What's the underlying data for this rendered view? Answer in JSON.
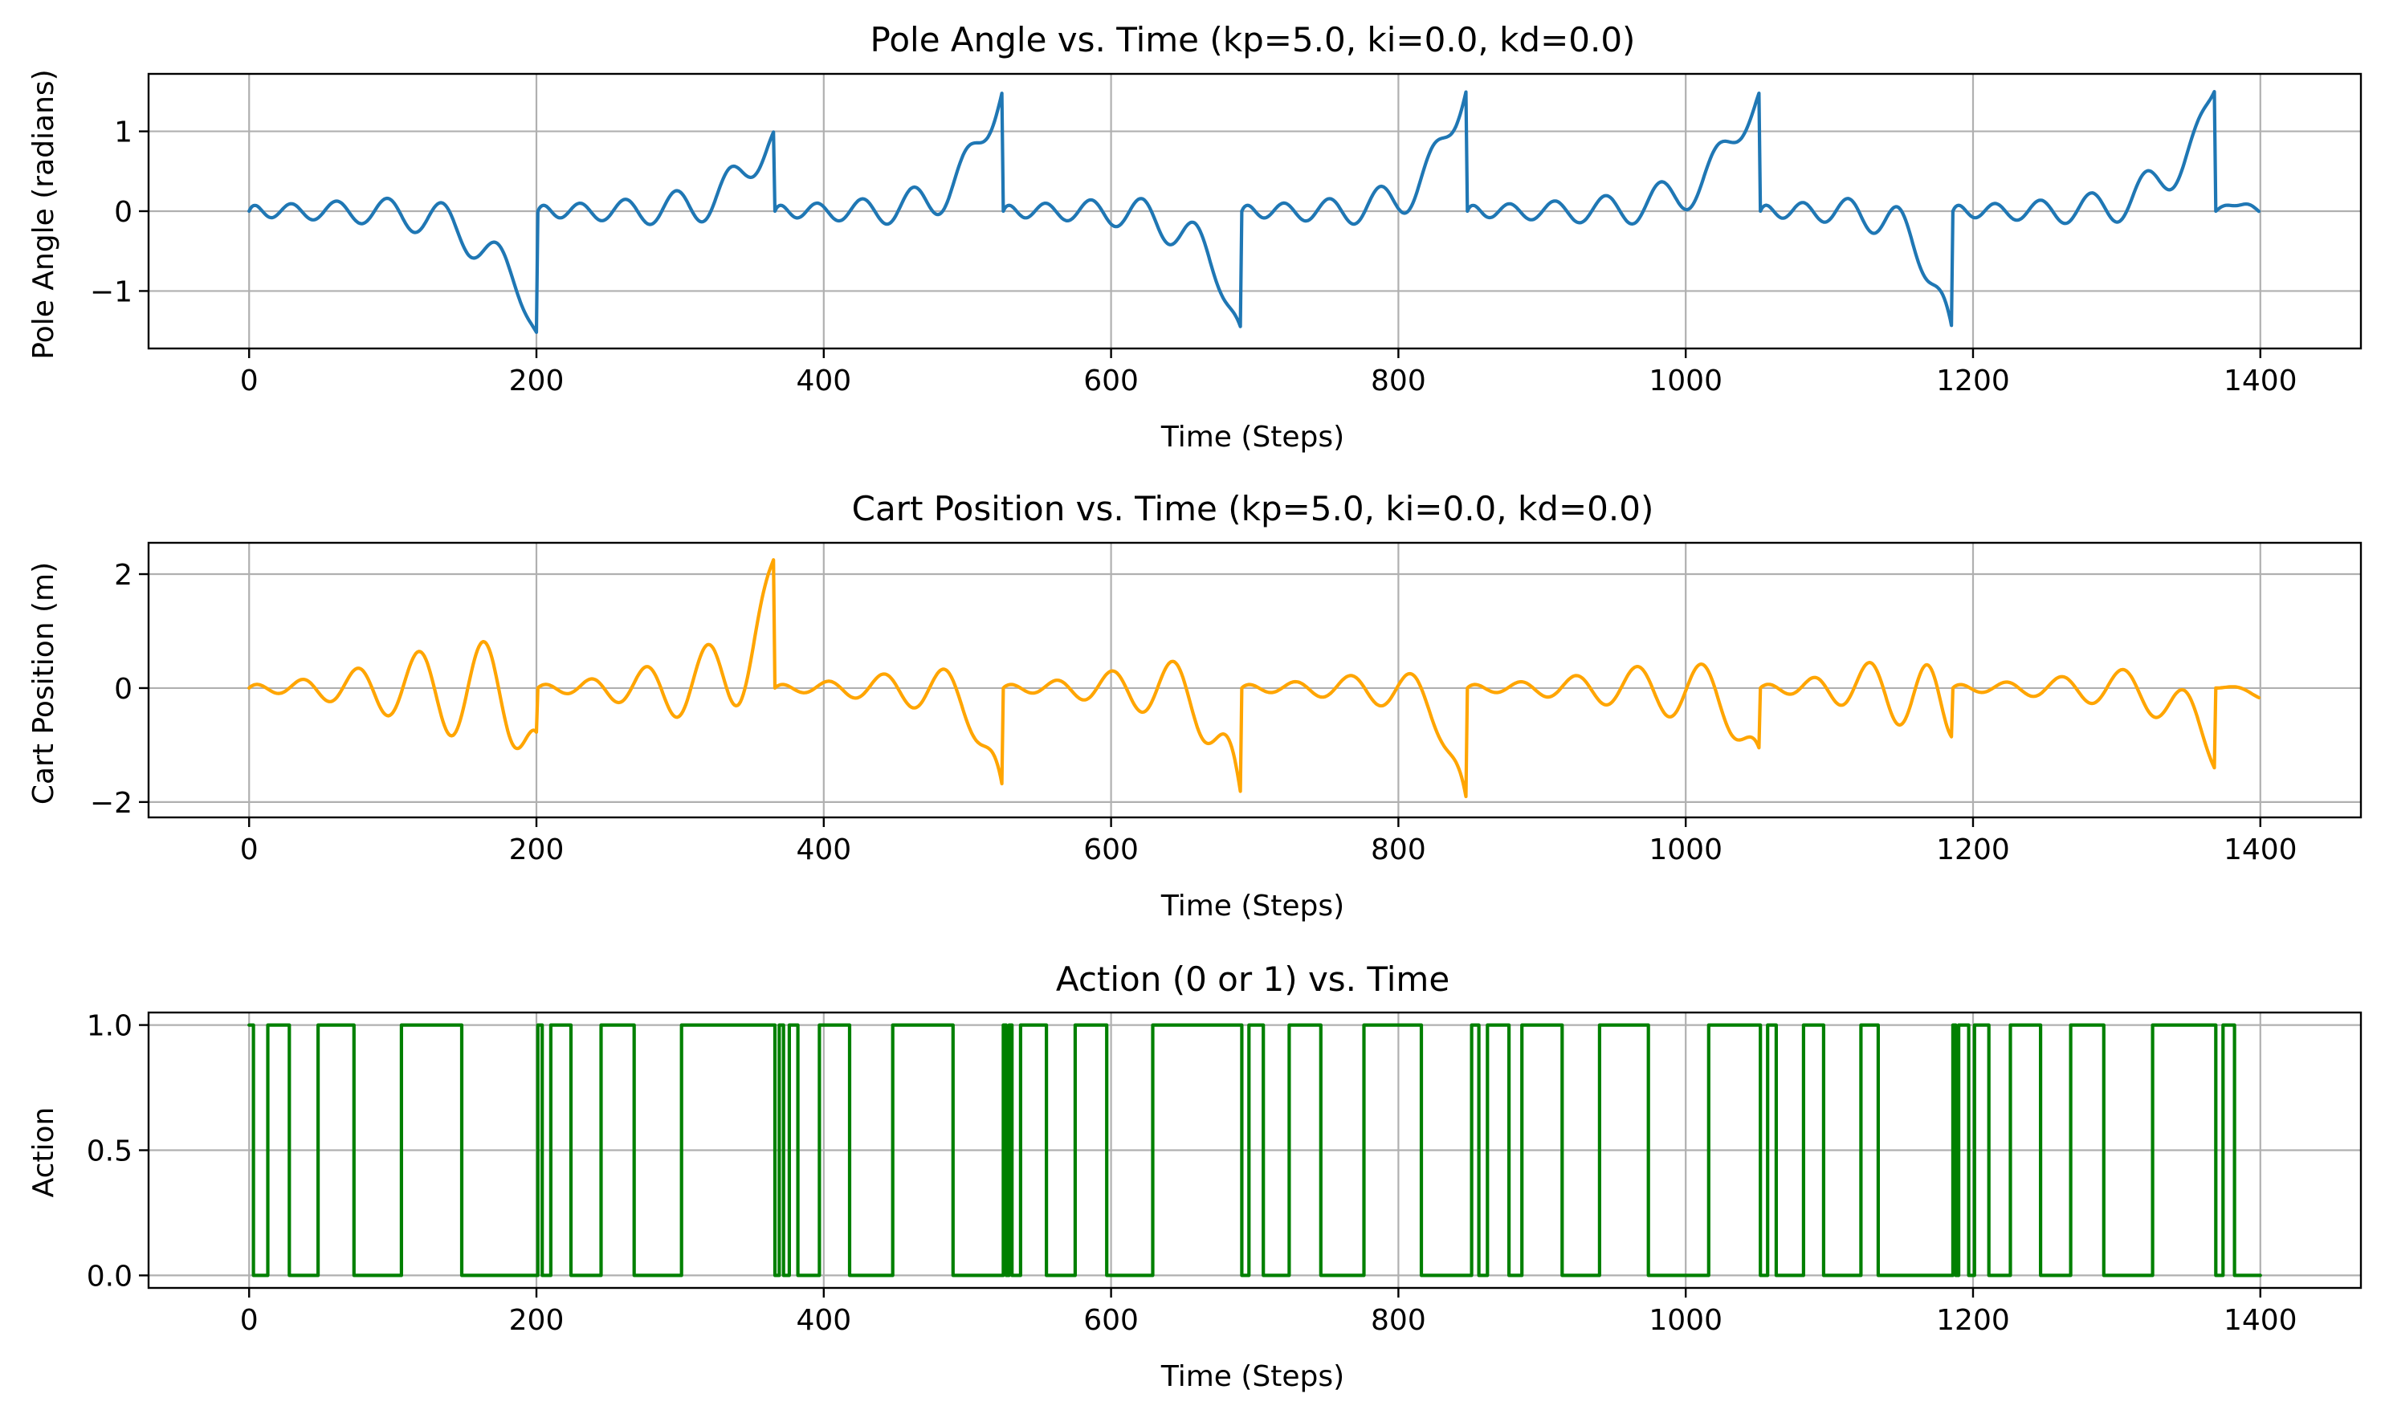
{
  "chart_data": [
    {
      "type": "line",
      "title": "Pole Angle vs. Time (kp=5.0, ki=0.0, kd=0.0)",
      "xlabel": "Time (Steps)",
      "ylabel": "Pole Angle (radians)",
      "xlim": [
        -70,
        1470
      ],
      "ylim": [
        -1.72,
        1.72
      ],
      "xticks": [
        0,
        200,
        400,
        600,
        800,
        1000,
        1200,
        1400
      ],
      "yticks": [
        -1,
        0,
        1
      ],
      "ytick_labels": [
        "−1",
        "0",
        "1"
      ],
      "grid": true,
      "color": "#1f77b4",
      "model": "angle",
      "segments": [
        {
          "start": 0,
          "end": 201,
          "peak": -1.55
        },
        {
          "start": 201,
          "end": 366,
          "peak": 1.03
        },
        {
          "start": 366,
          "end": 525,
          "peak": 1.55
        },
        {
          "start": 525,
          "end": 691,
          "peak": -1.5
        },
        {
          "start": 691,
          "end": 848,
          "peak": 1.57
        },
        {
          "start": 848,
          "end": 1052,
          "peak": 1.53
        },
        {
          "start": 1052,
          "end": 1186,
          "peak": -1.52
        },
        {
          "start": 1186,
          "end": 1369,
          "peak": 1.54
        },
        {
          "start": 1369,
          "end": 1400,
          "peak": 0.1
        }
      ]
    },
    {
      "type": "line",
      "title": "Cart Position vs. Time (kp=5.0, ki=0.0, kd=0.0)",
      "xlabel": "Time (Steps)",
      "ylabel": "Cart Position (m)",
      "xlim": [
        -70,
        1470
      ],
      "ylim": [
        -2.27,
        2.55
      ],
      "xticks": [
        0,
        200,
        400,
        600,
        800,
        1000,
        1200,
        1400
      ],
      "yticks": [
        -2,
        0,
        2
      ],
      "ytick_labels": [
        "−2",
        "0",
        "2"
      ],
      "grid": true,
      "color": "#ffa500",
      "model": "cart",
      "segments": [
        {
          "start": 0,
          "end": 201,
          "amp": 1.38,
          "last": -0.82
        },
        {
          "start": 201,
          "end": 366,
          "amp": 1.1,
          "last": 2.32
        },
        {
          "start": 366,
          "end": 525,
          "amp": 0.62,
          "last": -1.82
        },
        {
          "start": 525,
          "end": 691,
          "amp": 0.85,
          "last": -1.98
        },
        {
          "start": 691,
          "end": 848,
          "amp": 0.52,
          "last": -2.05
        },
        {
          "start": 848,
          "end": 1052,
          "amp": 0.78,
          "last": -1.12
        },
        {
          "start": 1052,
          "end": 1186,
          "amp": 0.98,
          "last": -0.88
        },
        {
          "start": 1186,
          "end": 1369,
          "amp": 0.58,
          "last": -1.45
        },
        {
          "start": 1369,
          "end": 1400,
          "amp": 0.08,
          "last": -0.1
        }
      ]
    },
    {
      "type": "line",
      "title": "Action (0 or 1) vs. Time",
      "xlabel": "Time (Steps)",
      "ylabel": "Action",
      "xlim": [
        -70,
        1470
      ],
      "ylim": [
        -0.05,
        1.05
      ],
      "xticks": [
        0,
        200,
        400,
        600,
        800,
        1000,
        1200,
        1400
      ],
      "yticks": [
        0,
        0.5,
        1
      ],
      "ytick_labels": [
        "0.0",
        "0.5",
        "1.0"
      ],
      "grid": true,
      "color": "#008000",
      "model": "step",
      "initial_value": 1,
      "switches": [
        3,
        13,
        28,
        48,
        73,
        106,
        148,
        201,
        204,
        210,
        224,
        245,
        268,
        301,
        366,
        369,
        372,
        376,
        382,
        397,
        418,
        448,
        490,
        525,
        527,
        529,
        531,
        537,
        555,
        575,
        597,
        629,
        691,
        696,
        706,
        724,
        746,
        776,
        816,
        851,
        856,
        862,
        877,
        886,
        914,
        940,
        974,
        1016,
        1052,
        1057,
        1063,
        1082,
        1096,
        1122,
        1134,
        1186,
        1188,
        1190,
        1197,
        1201,
        1211,
        1226,
        1247,
        1268,
        1291,
        1325,
        1369,
        1374,
        1382,
        1400
      ]
    }
  ]
}
